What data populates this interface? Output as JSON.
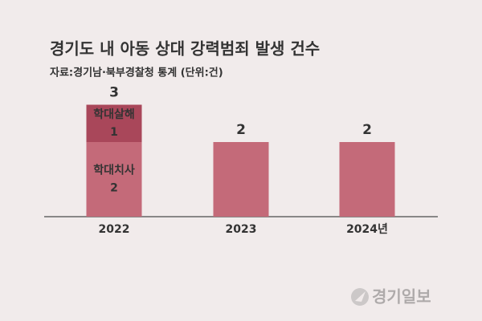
{
  "chart_data": {
    "type": "bar",
    "title": "경기도 내 아동 상대 강력범죄 발생 건수",
    "subtitle": "자료:경기남·북부경찰청 통계 (단위:건)",
    "categories": [
      "2022",
      "2023",
      "2024년"
    ],
    "values": [
      3,
      2,
      2
    ],
    "color": "#c46a79",
    "breakdown": [
      {
        "name": "학대치사",
        "value": 2,
        "color": "#c46a79"
      },
      {
        "name": "학대살해",
        "value": 1,
        "color": "#a9475a"
      }
    ]
  },
  "logo": "경기일보"
}
